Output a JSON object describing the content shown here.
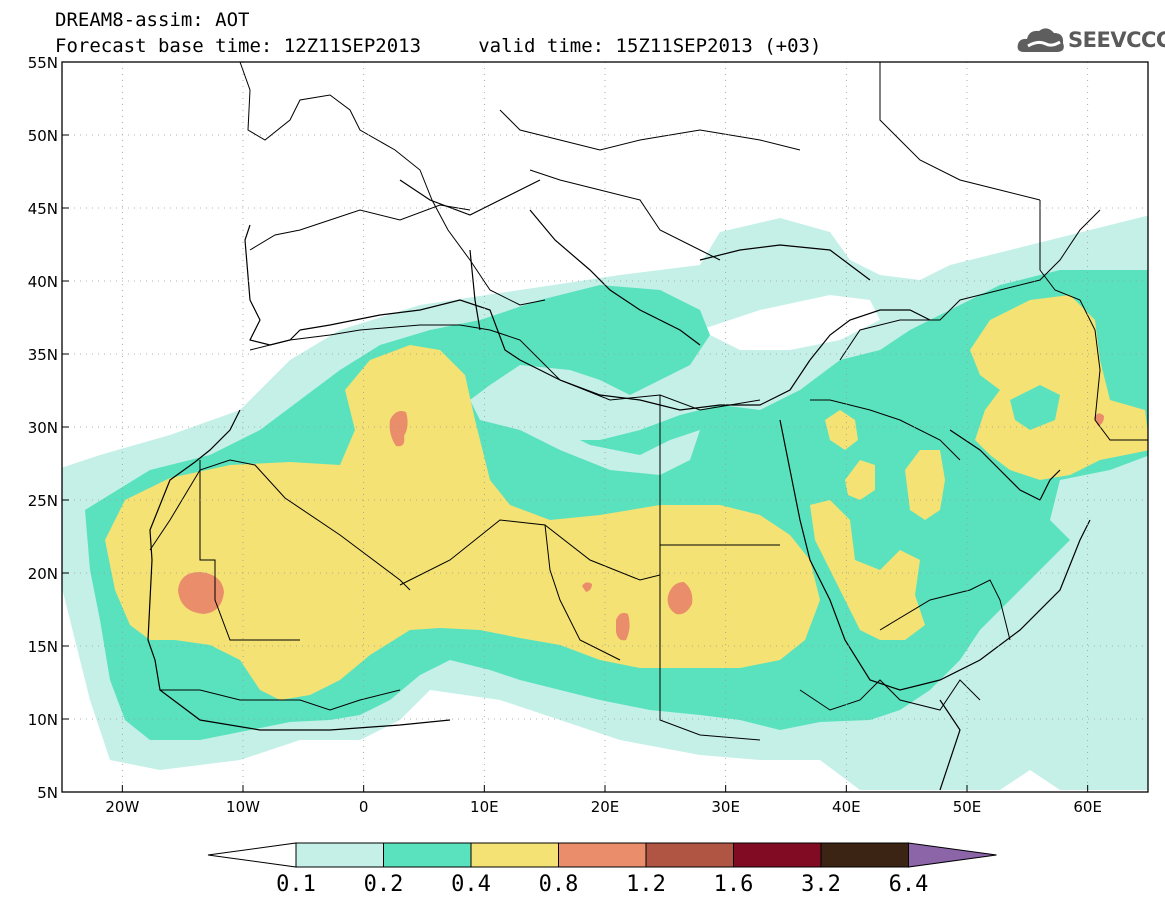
{
  "header": {
    "title": "DREAM8-assim: AOT",
    "subtitle": "Forecast base time: 12Z11SEP2013     valid time: 15Z11SEP2013 (+03)",
    "logo_text": "SEEVCCC"
  },
  "map": {
    "quantity": "AOT",
    "lat_range": [
      5,
      55
    ],
    "lon_range": [
      -25,
      65
    ],
    "lat_ticks": [
      "55N",
      "50N",
      "45N",
      "40N",
      "35N",
      "30N",
      "25N",
      "20N",
      "15N",
      "10N",
      "5N"
    ],
    "lat_tick_values": [
      55,
      50,
      45,
      40,
      35,
      30,
      25,
      20,
      15,
      10,
      5
    ],
    "lon_ticks": [
      "20W",
      "10W",
      "0",
      "10E",
      "20E",
      "30E",
      "40E",
      "50E",
      "60E"
    ],
    "lon_tick_values": [
      -20,
      -10,
      0,
      10,
      20,
      30,
      40,
      50,
      60
    ],
    "grid": "dotted"
  },
  "legend": {
    "levels": [
      "0.1",
      "0.2",
      "0.4",
      "0.8",
      "1.2",
      "1.6",
      "3.2",
      "6.4"
    ],
    "colors": [
      "#c4f0e8",
      "#5ae2be",
      "#f4e274",
      "#e98d6b",
      "#b05444",
      "#820b24",
      "#3b2413",
      "#8c64a8"
    ]
  }
}
